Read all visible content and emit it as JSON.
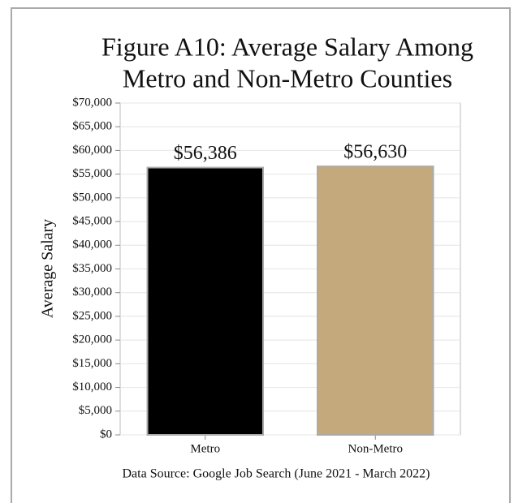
{
  "chart_data": {
    "type": "bar",
    "title": [
      "Figure A10: Average Salary Among",
      "Metro and Non-Metro Counties"
    ],
    "ylabel": "Average Salary",
    "note": "Data Source: Google Job Search (June 2021 - March 2022)",
    "categories": [
      "Metro",
      "Non-Metro"
    ],
    "values": [
      56386,
      56630
    ],
    "value_labels": [
      "$56,386",
      "$56,630"
    ],
    "colors": [
      "#000000",
      "#c4a97c"
    ],
    "ylim": [
      0,
      70000
    ],
    "yticks": [
      {
        "value": 0,
        "label": "$0"
      },
      {
        "value": 5000,
        "label": "$5,000"
      },
      {
        "value": 10000,
        "label": "$10,000"
      },
      {
        "value": 15000,
        "label": "$15,000"
      },
      {
        "value": 20000,
        "label": "$20,000"
      },
      {
        "value": 25000,
        "label": "$25,000"
      },
      {
        "value": 30000,
        "label": "$30,000"
      },
      {
        "value": 35000,
        "label": "$35,000"
      },
      {
        "value": 40000,
        "label": "$40,000"
      },
      {
        "value": 45000,
        "label": "$45,000"
      },
      {
        "value": 50000,
        "label": "$50,000"
      },
      {
        "value": 55000,
        "label": "$55,000"
      },
      {
        "value": 60000,
        "label": "$60,000"
      },
      {
        "value": 65000,
        "label": "$65,000"
      },
      {
        "value": 70000,
        "label": "$70,000"
      }
    ],
    "grid": true
  }
}
